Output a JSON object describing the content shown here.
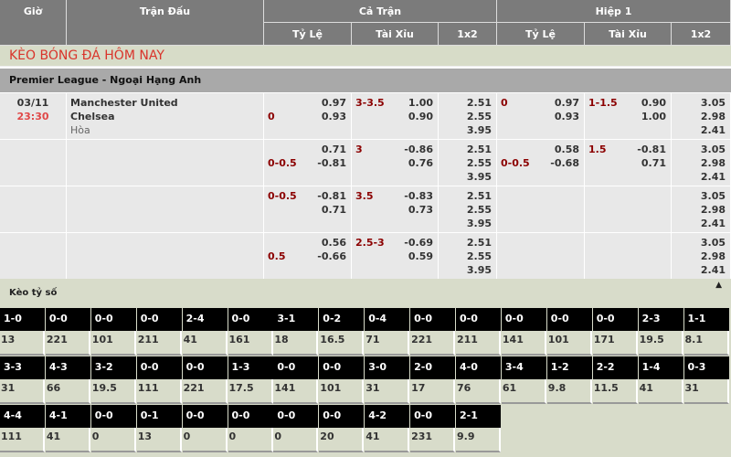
{
  "header": {
    "gio": "Giờ",
    "tran_dau": "Trận Đấu",
    "ca_tran": "Cả Trận",
    "hiep1": "Hiệp 1",
    "ty_le": "Tỷ Lệ",
    "tai_xiu": "Tài Xỉu",
    "x12": "1x2"
  },
  "title": "KÈO BÓNG ĐÁ HÔM NAY",
  "league": "Premier League - Ngoại Hạng Anh",
  "match": {
    "date": "03/11",
    "time": "23:30",
    "home": "Manchester United",
    "away": "Chelsea",
    "draw": "Hòa"
  },
  "rows": [
    {
      "hdp": {
        "line": "0",
        "line_pos": 2,
        "v": [
          "0.97",
          "0.93"
        ]
      },
      "ou": {
        "line": "3-3.5",
        "v": [
          "1.00",
          "0.90"
        ]
      },
      "x12": [
        "2.51",
        "2.55",
        "3.95"
      ],
      "h1_hdp": {
        "line": "0",
        "line_pos": 1,
        "v": [
          "0.97",
          "0.93"
        ]
      },
      "h1_ou": {
        "line": "1-1.5",
        "v": [
          "0.90",
          "1.00"
        ]
      },
      "h1_x12": [
        "3.05",
        "2.98",
        "2.41"
      ]
    },
    {
      "hdp": {
        "line": "0-0.5",
        "line_pos": 2,
        "v": [
          "0.71",
          "-0.81"
        ]
      },
      "ou": {
        "line": "3",
        "v": [
          "-0.86",
          "0.76"
        ]
      },
      "x12": [
        "2.51",
        "2.55",
        "3.95"
      ],
      "h1_hdp": {
        "line": "0-0.5",
        "line_pos": 2,
        "v": [
          "0.58",
          "-0.68"
        ]
      },
      "h1_ou": {
        "line": "1.5",
        "v": [
          "-0.81",
          "0.71"
        ]
      },
      "h1_x12": [
        "3.05",
        "2.98",
        "2.41"
      ]
    },
    {
      "hdp": {
        "line": "0-0.5",
        "line_pos": 1,
        "v": [
          "-0.81",
          "0.71"
        ]
      },
      "ou": {
        "line": "3.5",
        "v": [
          "-0.83",
          "0.73"
        ]
      },
      "x12": [
        "2.51",
        "2.55",
        "3.95"
      ],
      "h1_hdp": null,
      "h1_ou": null,
      "h1_x12": [
        "3.05",
        "2.98",
        "2.41"
      ]
    },
    {
      "hdp": {
        "line": "0.5",
        "line_pos": 2,
        "v": [
          "0.56",
          "-0.66"
        ]
      },
      "ou": {
        "line": "2.5-3",
        "v": [
          "-0.69",
          "0.59"
        ]
      },
      "x12": [
        "2.51",
        "2.55",
        "3.95"
      ],
      "h1_hdp": null,
      "h1_ou": null,
      "h1_x12": [
        "3.05",
        "2.98",
        "2.41"
      ]
    }
  ],
  "correct_score": {
    "label": "Kèo tỷ số",
    "collapse_icon": "triangle-up-icon",
    "rows": [
      [
        [
          "1-0",
          "13"
        ],
        [
          "0-0",
          "221"
        ],
        [
          "0-0",
          "101"
        ],
        [
          "0-0",
          "211"
        ],
        [
          "2-4",
          "41"
        ],
        [
          "0-0",
          "161"
        ],
        [
          "3-1",
          "18"
        ],
        [
          "0-2",
          "16.5"
        ],
        [
          "0-4",
          "71"
        ],
        [
          "0-0",
          "221"
        ],
        [
          "0-0",
          "211"
        ],
        [
          "0-0",
          "141"
        ],
        [
          "0-0",
          "101"
        ],
        [
          "0-0",
          "171"
        ],
        [
          "2-3",
          "19.5"
        ],
        [
          "1-1",
          "8.1"
        ]
      ],
      [
        [
          "3-3",
          "31"
        ],
        [
          "4-3",
          "66"
        ],
        [
          "3-2",
          "19.5"
        ],
        [
          "0-0",
          "111"
        ],
        [
          "0-0",
          "221"
        ],
        [
          "1-3",
          "17.5"
        ],
        [
          "0-0",
          "141"
        ],
        [
          "0-0",
          "101"
        ],
        [
          "3-0",
          "31"
        ],
        [
          "2-0",
          "17"
        ],
        [
          "4-0",
          "76"
        ],
        [
          "3-4",
          "61"
        ],
        [
          "1-2",
          "9.8"
        ],
        [
          "2-2",
          "11.5"
        ],
        [
          "1-4",
          "41"
        ],
        [
          "0-3",
          "31"
        ]
      ],
      [
        [
          "4-4",
          "111"
        ],
        [
          "4-1",
          "41"
        ],
        [
          "0-0",
          "0"
        ],
        [
          "0-1",
          "13"
        ],
        [
          "0-0",
          "0"
        ],
        [
          "0-0",
          "0"
        ],
        [
          "0-0",
          "0"
        ],
        [
          "0-0",
          "20"
        ],
        [
          "4-2",
          "41"
        ],
        [
          "0-0",
          "231"
        ],
        [
          "2-1",
          "9.9"
        ]
      ]
    ]
  }
}
